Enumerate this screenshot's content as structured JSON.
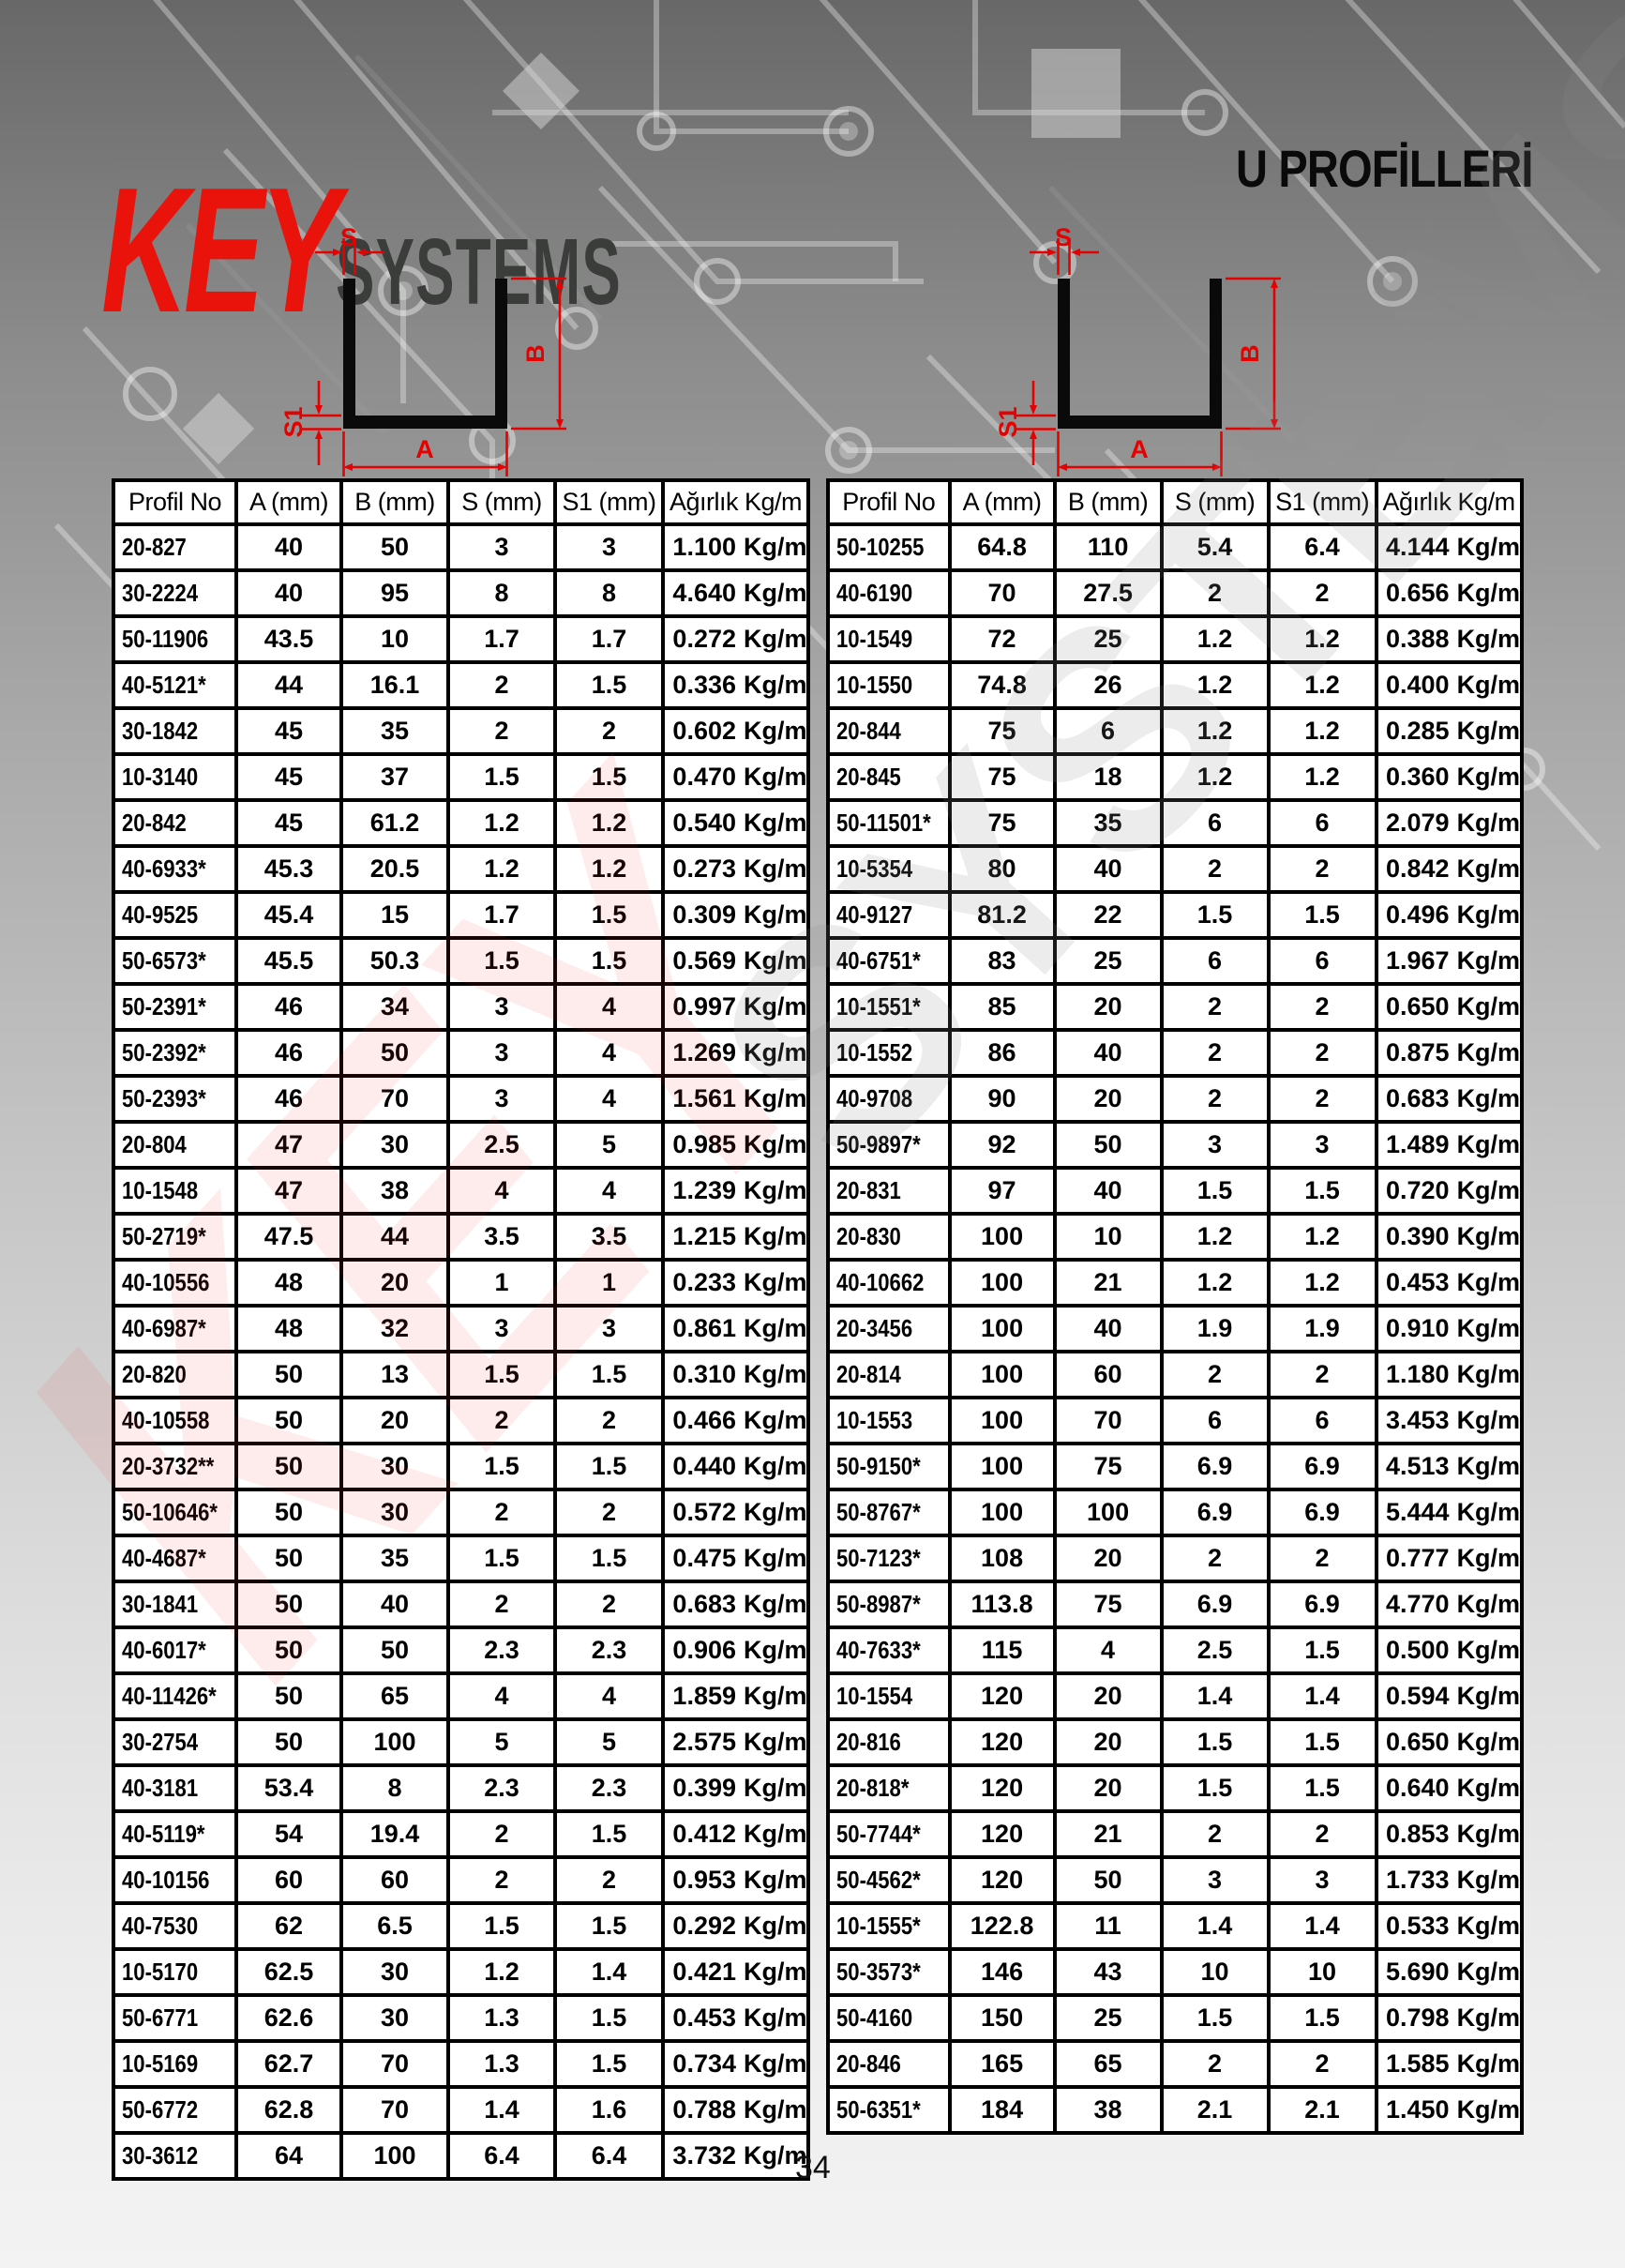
{
  "page": {
    "brand": {
      "key": "KEY",
      "systems": "SYSTEMS"
    },
    "title": "U PROFİLLERİ",
    "page_number": "34"
  },
  "colors": {
    "accent_red": "#ea130c",
    "logo_dark": "#3b3d3b",
    "table_border": "#000000",
    "cell_background": "#ffffff"
  },
  "diagram": {
    "labels": {
      "s": "S",
      "s1": "S1",
      "a": "A",
      "b": "B"
    }
  },
  "table": {
    "headers": [
      "Profil No",
      "A (mm)",
      "B (mm)",
      "S (mm)",
      "S1 (mm)",
      "Ağırlık Kg/m"
    ],
    "unit": "Kg/m",
    "left_rows": [
      [
        "20-827",
        "40",
        "50",
        "3",
        "3",
        "1.100"
      ],
      [
        "30-2224",
        "40",
        "95",
        "8",
        "8",
        "4.640"
      ],
      [
        "50-11906",
        "43.5",
        "10",
        "1.7",
        "1.7",
        "0.272"
      ],
      [
        "40-5121*",
        "44",
        "16.1",
        "2",
        "1.5",
        "0.336"
      ],
      [
        "30-1842",
        "45",
        "35",
        "2",
        "2",
        "0.602"
      ],
      [
        "10-3140",
        "45",
        "37",
        "1.5",
        "1.5",
        "0.470"
      ],
      [
        "20-842",
        "45",
        "61.2",
        "1.2",
        "1.2",
        "0.540"
      ],
      [
        "40-6933*",
        "45.3",
        "20.5",
        "1.2",
        "1.2",
        "0.273"
      ],
      [
        "40-9525",
        "45.4",
        "15",
        "1.7",
        "1.5",
        "0.309"
      ],
      [
        "50-6573*",
        "45.5",
        "50.3",
        "1.5",
        "1.5",
        "0.569"
      ],
      [
        "50-2391*",
        "46",
        "34",
        "3",
        "4",
        "0.997"
      ],
      [
        "50-2392*",
        "46",
        "50",
        "3",
        "4",
        "1.269"
      ],
      [
        "50-2393*",
        "46",
        "70",
        "3",
        "4",
        "1.561"
      ],
      [
        "20-804",
        "47",
        "30",
        "2.5",
        "5",
        "0.985"
      ],
      [
        "10-1548",
        "47",
        "38",
        "4",
        "4",
        "1.239"
      ],
      [
        "50-2719*",
        "47.5",
        "44",
        "3.5",
        "3.5",
        "1.215"
      ],
      [
        "40-10556",
        "48",
        "20",
        "1",
        "1",
        "0.233"
      ],
      [
        "40-6987*",
        "48",
        "32",
        "3",
        "3",
        "0.861"
      ],
      [
        "20-820",
        "50",
        "13",
        "1.5",
        "1.5",
        "0.310"
      ],
      [
        "40-10558",
        "50",
        "20",
        "2",
        "2",
        "0.466"
      ],
      [
        "20-3732**",
        "50",
        "30",
        "1.5",
        "1.5",
        "0.440"
      ],
      [
        "50-10646*",
        "50",
        "30",
        "2",
        "2",
        "0.572"
      ],
      [
        "40-4687*",
        "50",
        "35",
        "1.5",
        "1.5",
        "0.475"
      ],
      [
        "30-1841",
        "50",
        "40",
        "2",
        "2",
        "0.683"
      ],
      [
        "40-6017*",
        "50",
        "50",
        "2.3",
        "2.3",
        "0.906"
      ],
      [
        "40-11426*",
        "50",
        "65",
        "4",
        "4",
        "1.859"
      ],
      [
        "30-2754",
        "50",
        "100",
        "5",
        "5",
        "2.575"
      ],
      [
        "40-3181",
        "53.4",
        "8",
        "2.3",
        "2.3",
        "0.399"
      ],
      [
        "40-5119*",
        "54",
        "19.4",
        "2",
        "1.5",
        "0.412"
      ],
      [
        "40-10156",
        "60",
        "60",
        "2",
        "2",
        "0.953"
      ],
      [
        "40-7530",
        "62",
        "6.5",
        "1.5",
        "1.5",
        "0.292"
      ],
      [
        "10-5170",
        "62.5",
        "30",
        "1.2",
        "1.4",
        "0.421"
      ],
      [
        "50-6771",
        "62.6",
        "30",
        "1.3",
        "1.5",
        "0.453"
      ],
      [
        "10-5169",
        "62.7",
        "70",
        "1.3",
        "1.5",
        "0.734"
      ],
      [
        "50-6772",
        "62.8",
        "70",
        "1.4",
        "1.6",
        "0.788"
      ],
      [
        "30-3612",
        "64",
        "100",
        "6.4",
        "6.4",
        "3.732"
      ]
    ],
    "right_rows": [
      [
        "50-10255",
        "64.8",
        "110",
        "5.4",
        "6.4",
        "4.144"
      ],
      [
        "40-6190",
        "70",
        "27.5",
        "2",
        "2",
        "0.656"
      ],
      [
        "10-1549",
        "72",
        "25",
        "1.2",
        "1.2",
        "0.388"
      ],
      [
        "10-1550",
        "74.8",
        "26",
        "1.2",
        "1.2",
        "0.400"
      ],
      [
        "20-844",
        "75",
        "6",
        "1.2",
        "1.2",
        "0.285"
      ],
      [
        "20-845",
        "75",
        "18",
        "1.2",
        "1.2",
        "0.360"
      ],
      [
        "50-11501*",
        "75",
        "35",
        "6",
        "6",
        "2.079"
      ],
      [
        "10-5354",
        "80",
        "40",
        "2",
        "2",
        "0.842"
      ],
      [
        "40-9127",
        "81.2",
        "22",
        "1.5",
        "1.5",
        "0.496"
      ],
      [
        "40-6751*",
        "83",
        "25",
        "6",
        "6",
        "1.967"
      ],
      [
        "10-1551*",
        "85",
        "20",
        "2",
        "2",
        "0.650"
      ],
      [
        "10-1552",
        "86",
        "40",
        "2",
        "2",
        "0.875"
      ],
      [
        "40-9708",
        "90",
        "20",
        "2",
        "2",
        "0.683"
      ],
      [
        "50-9897*",
        "92",
        "50",
        "3",
        "3",
        "1.489"
      ],
      [
        "20-831",
        "97",
        "40",
        "1.5",
        "1.5",
        "0.720"
      ],
      [
        "20-830",
        "100",
        "10",
        "1.2",
        "1.2",
        "0.390"
      ],
      [
        "40-10662",
        "100",
        "21",
        "1.2",
        "1.2",
        "0.453"
      ],
      [
        "20-3456",
        "100",
        "40",
        "1.9",
        "1.9",
        "0.910"
      ],
      [
        "20-814",
        "100",
        "60",
        "2",
        "2",
        "1.180"
      ],
      [
        "10-1553",
        "100",
        "70",
        "6",
        "6",
        "3.453"
      ],
      [
        "50-9150*",
        "100",
        "75",
        "6.9",
        "6.9",
        "4.513"
      ],
      [
        "50-8767*",
        "100",
        "100",
        "6.9",
        "6.9",
        "5.444"
      ],
      [
        "50-7123*",
        "108",
        "20",
        "2",
        "2",
        "0.777"
      ],
      [
        "50-8987*",
        "113.8",
        "75",
        "6.9",
        "6.9",
        "4.770"
      ],
      [
        "40-7633*",
        "115",
        "4",
        "2.5",
        "1.5",
        "0.500"
      ],
      [
        "10-1554",
        "120",
        "20",
        "1.4",
        "1.4",
        "0.594"
      ],
      [
        "20-816",
        "120",
        "20",
        "1.5",
        "1.5",
        "0.650"
      ],
      [
        "20-818*",
        "120",
        "20",
        "1.5",
        "1.5",
        "0.640"
      ],
      [
        "50-7744*",
        "120",
        "21",
        "2",
        "2",
        "0.853"
      ],
      [
        "50-4562*",
        "120",
        "50",
        "3",
        "3",
        "1.733"
      ],
      [
        "10-1555*",
        "122.8",
        "11",
        "1.4",
        "1.4",
        "0.533"
      ],
      [
        "50-3573*",
        "146",
        "43",
        "10",
        "10",
        "5.690"
      ],
      [
        "50-4160",
        "150",
        "25",
        "1.5",
        "1.5",
        "0.798"
      ],
      [
        "20-846",
        "165",
        "65",
        "2",
        "2",
        "1.585"
      ],
      [
        "50-6351*",
        "184",
        "38",
        "2.1",
        "2.1",
        "1.450"
      ]
    ]
  }
}
